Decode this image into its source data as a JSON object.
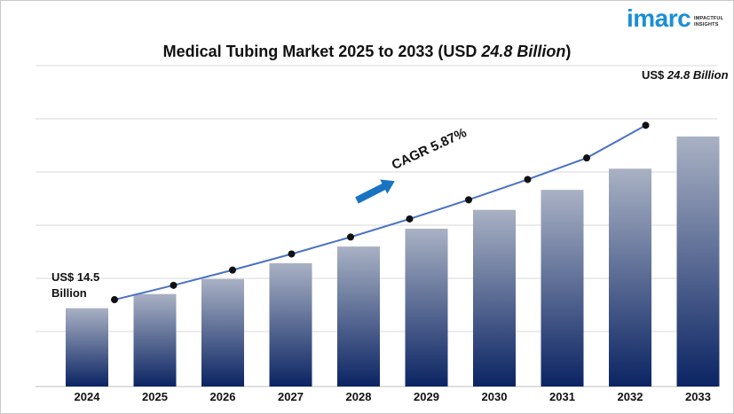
{
  "logo": {
    "word": "imarc",
    "tagline_1": "IMPACTFUL",
    "tagline_2": "INSIGHTS"
  },
  "title_prefix": "Medical Tubing Market 2025 to 2033 (USD ",
  "title_value": "24.8 Billion",
  "title_suffix": ")",
  "annotations": {
    "start_label_line1": "US$ 14.5",
    "start_label_line2": "Billion",
    "end_label_prefix": "US$ ",
    "end_label_value": "24.8 Billion",
    "cagr": "CAGR 5.87%"
  },
  "colors": {
    "bar_top": "#a9b1c4",
    "bar_bottom": "#0b2463",
    "line": "#4a72c4",
    "marker": "#111111",
    "arrow": "#1874c2",
    "brand": "#1a8fd6"
  },
  "chart_data": {
    "type": "bar",
    "title": "Medical Tubing Market 2025 to 2033 (USD 24.8 Billion)",
    "categories": [
      "2024",
      "2025",
      "2026",
      "2027",
      "2028",
      "2029",
      "2030",
      "2031",
      "2032",
      "2033"
    ],
    "series": [
      {
        "values": [
          14.5,
          15.35,
          16.25,
          17.2,
          18.2,
          19.27,
          20.4,
          21.6,
          22.87,
          24.8
        ]
      }
    ],
    "trend_line": [
      14.5,
      15.35,
      16.25,
      17.2,
      18.2,
      19.27,
      20.4,
      21.6,
      22.87,
      24.8
    ],
    "grid": true,
    "y_axis_labels_shown": false
  }
}
